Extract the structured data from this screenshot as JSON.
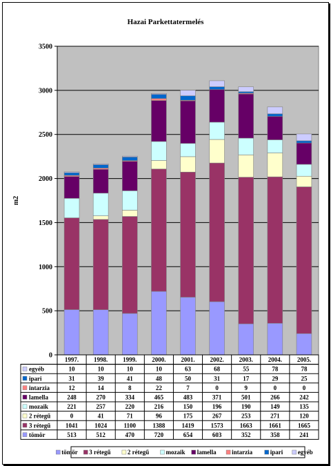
{
  "chart_data": {
    "type": "bar",
    "stacked": true,
    "title": "Hazai Parkettatermelés",
    "ylabel": "m2",
    "ylim": [
      0,
      3500
    ],
    "yticks": [
      0,
      500,
      1000,
      1500,
      2000,
      2500,
      3000,
      3500
    ],
    "categories": [
      "1997.",
      "1998.",
      "1999.",
      "2000.",
      "2001.",
      "2002.",
      "2003.",
      "2004.",
      "2005."
    ],
    "series": [
      {
        "name": "tömör",
        "color": "#9999ff",
        "values": [
          513,
          512,
          470,
          720,
          654,
          603,
          352,
          358,
          241
        ]
      },
      {
        "name": "3 rétegű",
        "color": "#993366",
        "values": [
          1041,
          1024,
          1100,
          1388,
          1419,
          1573,
          1663,
          1661,
          1665
        ]
      },
      {
        "name": "2 rétegű",
        "color": "#ffffcc",
        "values": [
          0,
          41,
          71,
          96,
          175,
          267,
          253,
          271,
          120
        ]
      },
      {
        "name": "mozaik",
        "color": "#ccffff",
        "values": [
          221,
          257,
          220,
          216,
          150,
          196,
          190,
          149,
          135
        ]
      },
      {
        "name": "lamella",
        "color": "#660066",
        "values": [
          248,
          270,
          334,
          465,
          483,
          371,
          501,
          266,
          242
        ]
      },
      {
        "name": "intarzia",
        "color": "#ff8080",
        "values": [
          12,
          14,
          8,
          22,
          7,
          0,
          9,
          0,
          0
        ]
      },
      {
        "name": "ipari",
        "color": "#0066cc",
        "values": [
          31,
          39,
          41,
          48,
          50,
          31,
          17,
          29,
          25
        ]
      },
      {
        "name": "egyéb",
        "color": "#ccccff",
        "values": [
          10,
          10,
          10,
          10,
          63,
          68,
          55,
          78,
          78
        ]
      }
    ],
    "grid": true,
    "legend": "bottom",
    "plot_background": "#c0c0c0"
  }
}
